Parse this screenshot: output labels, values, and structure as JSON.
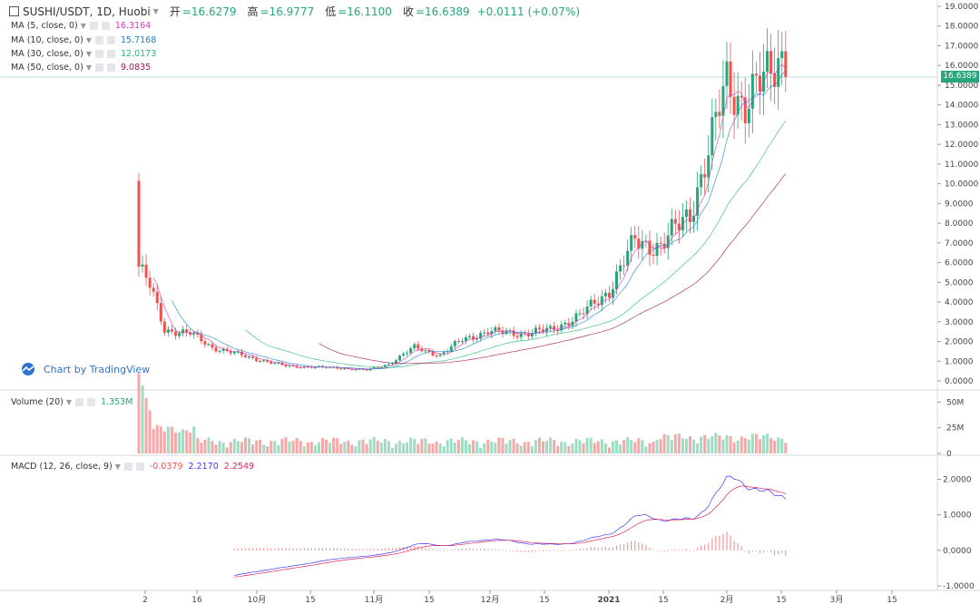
{
  "header": {
    "symbol": "SUSHI/USDT, 1D, Huobi",
    "open_label": "开",
    "open": "=16.6279",
    "high_label": "高",
    "high": "=16.9777",
    "low_label": "低",
    "low": "=16.1100",
    "close_label": "收",
    "close": "=16.6389",
    "change": "+0.0111 (+0.07%)"
  },
  "indicators": {
    "ma5": {
      "label": "MA (5, close, 0)",
      "value": "16.3164",
      "color": "#d63ab7"
    },
    "ma10": {
      "label": "MA (10, close, 0)",
      "value": "15.7168",
      "color": "#1e7fc7"
    },
    "ma30": {
      "label": "MA (30, close, 0)",
      "value": "12.0173",
      "color": "#22b573"
    },
    "ma50": {
      "label": "MA (50, close, 0)",
      "value": "9.0835",
      "color": "#a0135a"
    },
    "volume": {
      "label": "Volume (20)",
      "value": "1.353M"
    },
    "macd": {
      "label": "MACD (12, 26, close, 9)",
      "hist": "-0.0379",
      "macd": "2.2170",
      "signal": "2.2549"
    }
  },
  "brand": {
    "text": "Chart by TradingView"
  },
  "last_price_tag": "16.6389",
  "colors": {
    "up": "#26a67a",
    "down": "#ef5350",
    "macd_line": "#3a3aff",
    "signal_line": "#e0245e"
  },
  "chart_data": [
    {
      "type": "candlestick",
      "title": "SUSHI/USDT, 1D, Huobi",
      "x_ticks": [
        "2",
        "16",
        "10月",
        "15",
        "11月",
        "15",
        "12月",
        "15",
        "2021",
        "15",
        "2月",
        "15",
        "3月",
        "15"
      ],
      "y_ticks": [
        "19.0000",
        "18.0000",
        "17.0000",
        "16.0000",
        "15.0000",
        "14.0000",
        "13.0000",
        "12.0000",
        "11.0000",
        "10.0000",
        "9.0000",
        "8.0000",
        "7.0000",
        "6.0000",
        "5.0000",
        "4.0000",
        "3.0000",
        "2.0000",
        "1.0000",
        "0.0000"
      ],
      "ylim": [
        0,
        19
      ],
      "close_keypoints": [
        {
          "day": 0,
          "price": 5.8
        },
        {
          "day": 3,
          "price": 4.8
        },
        {
          "day": 7,
          "price": 2.6
        },
        {
          "day": 14,
          "price": 2.4
        },
        {
          "day": 20,
          "price": 1.7
        },
        {
          "day": 30,
          "price": 1.2
        },
        {
          "day": 40,
          "price": 0.75
        },
        {
          "day": 55,
          "price": 0.65
        },
        {
          "day": 62,
          "price": 0.55
        },
        {
          "day": 68,
          "price": 0.85
        },
        {
          "day": 75,
          "price": 1.7
        },
        {
          "day": 82,
          "price": 1.3
        },
        {
          "day": 88,
          "price": 2.1
        },
        {
          "day": 95,
          "price": 2.5
        },
        {
          "day": 105,
          "price": 2.4
        },
        {
          "day": 112,
          "price": 2.6
        },
        {
          "day": 120,
          "price": 3.3
        },
        {
          "day": 128,
          "price": 4.6
        },
        {
          "day": 135,
          "price": 7.1
        },
        {
          "day": 142,
          "price": 6.8
        },
        {
          "day": 150,
          "price": 8.6
        },
        {
          "day": 155,
          "price": 11.5
        },
        {
          "day": 160,
          "price": 15.3
        },
        {
          "day": 165,
          "price": 14.0
        },
        {
          "day": 170,
          "price": 15.2
        },
        {
          "day": 174,
          "price": 16.5
        },
        {
          "day": 176,
          "price": 16.6389
        }
      ]
    },
    {
      "type": "bar",
      "title": "Volume (20)",
      "y_ticks": [
        "50M",
        "25M",
        "0"
      ],
      "ylim": [
        0,
        60
      ]
    },
    {
      "type": "line",
      "title": "MACD (12, 26, close, 9)",
      "y_ticks": [
        "2.0000",
        "1.0000",
        "0.0000",
        "-1.0000"
      ],
      "ylim": [
        -1.1,
        2.6
      ]
    }
  ]
}
